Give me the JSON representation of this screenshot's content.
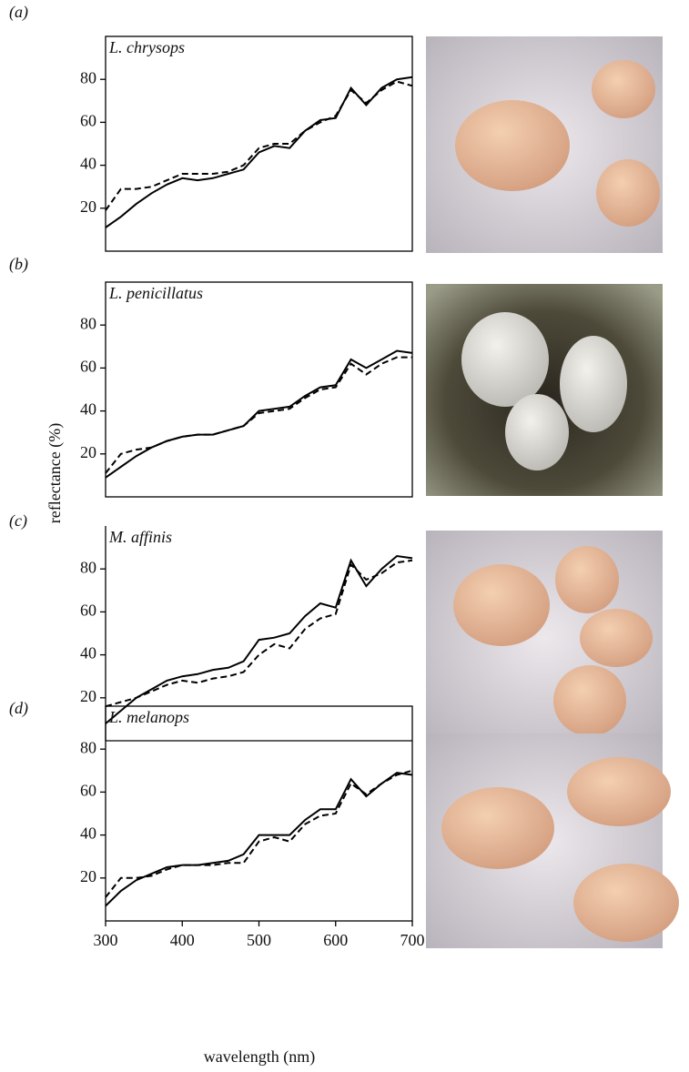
{
  "figure": {
    "ylabel": "reflectance (%)",
    "xlabel": "wavelength (nm)"
  },
  "chart_data": [
    {
      "type": "line",
      "panel": "(a)",
      "title": "L. chrysops",
      "x": [
        300,
        320,
        340,
        360,
        380,
        400,
        420,
        440,
        460,
        480,
        500,
        520,
        540,
        560,
        580,
        600,
        620,
        640,
        660,
        680,
        700
      ],
      "series": [
        {
          "color": "#000",
          "dashed": false,
          "values": [
            11,
            16,
            22,
            27,
            31,
            34,
            33,
            34,
            36,
            38,
            46,
            49,
            48,
            56,
            61,
            62,
            76,
            68,
            76,
            80,
            81
          ]
        },
        {
          "color": "#000",
          "dashed": true,
          "values": [
            19,
            29,
            29,
            30,
            33,
            36,
            36,
            36,
            37,
            40,
            48,
            50,
            50,
            56,
            60,
            63,
            75,
            69,
            75,
            79,
            77
          ]
        }
      ],
      "xlim": [
        300,
        700
      ],
      "ylim": [
        0,
        100
      ],
      "yticks": [
        20,
        40,
        60,
        80
      ],
      "box": true
    },
    {
      "type": "line",
      "panel": "(b)",
      "title": "L. penicillatus",
      "x": [
        300,
        320,
        340,
        360,
        380,
        400,
        420,
        440,
        460,
        480,
        500,
        520,
        540,
        560,
        580,
        600,
        620,
        640,
        660,
        680,
        700
      ],
      "series": [
        {
          "color": "#000",
          "dashed": false,
          "values": [
            9,
            14,
            19,
            23,
            26,
            28,
            29,
            29,
            31,
            33,
            40,
            41,
            42,
            47,
            51,
            52,
            64,
            60,
            64,
            68,
            67
          ]
        },
        {
          "color": "#000",
          "dashed": true,
          "values": [
            11,
            20,
            22,
            23,
            26,
            28,
            29,
            29,
            31,
            33,
            39,
            40,
            41,
            46,
            50,
            51,
            62,
            57,
            62,
            65,
            65
          ]
        }
      ],
      "xlim": [
        300,
        700
      ],
      "ylim": [
        0,
        100
      ],
      "yticks": [
        20,
        40,
        60,
        80
      ],
      "box": true
    },
    {
      "type": "line",
      "panel": "(c)",
      "title": "M. affinis",
      "x": [
        300,
        320,
        340,
        360,
        380,
        400,
        420,
        440,
        460,
        480,
        500,
        520,
        540,
        560,
        580,
        600,
        620,
        640,
        660,
        680,
        700
      ],
      "series": [
        {
          "color": "#000",
          "dashed": false,
          "values": [
            8,
            14,
            20,
            24,
            28,
            30,
            31,
            33,
            34,
            37,
            47,
            48,
            50,
            58,
            64,
            62,
            84,
            72,
            80,
            86,
            85
          ]
        },
        {
          "color": "#000",
          "dashed": true,
          "values": [
            16,
            18,
            20,
            23,
            26,
            28,
            27,
            29,
            30,
            32,
            40,
            45,
            43,
            52,
            57,
            59,
            82,
            75,
            78,
            83,
            84
          ]
        }
      ],
      "xlim": [
        300,
        700
      ],
      "ylim": [
        0,
        100
      ],
      "yticks": [
        20,
        40,
        60,
        80
      ],
      "box": false
    },
    {
      "type": "line",
      "panel": "(d)",
      "title": "L. melanops",
      "x": [
        300,
        320,
        340,
        360,
        380,
        400,
        420,
        440,
        460,
        480,
        500,
        520,
        540,
        560,
        580,
        600,
        620,
        640,
        660,
        680,
        700
      ],
      "series": [
        {
          "color": "#000",
          "dashed": false,
          "values": [
            7,
            14,
            19,
            22,
            25,
            26,
            26,
            27,
            28,
            31,
            40,
            40,
            40,
            47,
            52,
            52,
            66,
            58,
            64,
            69,
            68
          ]
        },
        {
          "color": "#000",
          "dashed": true,
          "values": [
            11,
            20,
            20,
            21,
            24,
            26,
            26,
            26,
            27,
            27,
            37,
            39,
            37,
            45,
            49,
            50,
            64,
            59,
            64,
            68,
            70
          ]
        }
      ],
      "xlim": [
        300,
        700
      ],
      "ylim": [
        0,
        100
      ],
      "yticks": [
        20,
        40,
        60,
        80
      ],
      "xticks": [
        300,
        400,
        500,
        600,
        700
      ],
      "box": true
    }
  ]
}
